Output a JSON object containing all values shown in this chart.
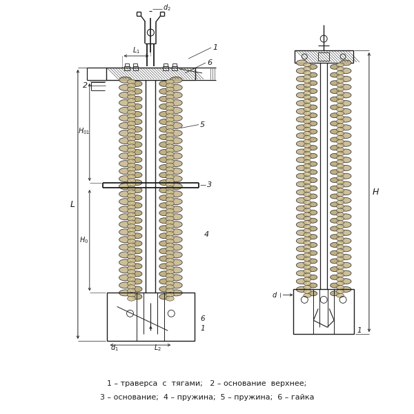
{
  "bg_color": "#ffffff",
  "line_color": "#1a1a1a",
  "fig_width": 6.0,
  "fig_height": 6.0,
  "caption_line1": "1 – траверса  с  тягами;   2 – основание  верхнее;",
  "caption_line2": "3 – основание;  4 – пружина;  5 – пружина;  6 – гайка"
}
